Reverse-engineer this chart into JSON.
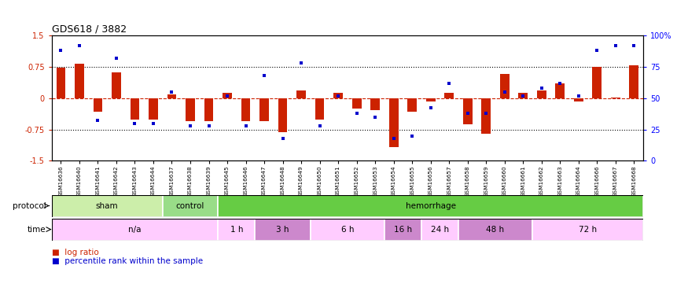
{
  "title": "GDS618 / 3882",
  "samples": [
    "GSM16636",
    "GSM16640",
    "GSM16641",
    "GSM16642",
    "GSM16643",
    "GSM16644",
    "GSM16637",
    "GSM16638",
    "GSM16639",
    "GSM16645",
    "GSM16646",
    "GSM16647",
    "GSM16648",
    "GSM16649",
    "GSM16650",
    "GSM16651",
    "GSM16652",
    "GSM16653",
    "GSM16654",
    "GSM16655",
    "GSM16656",
    "GSM16657",
    "GSM16658",
    "GSM16659",
    "GSM16660",
    "GSM16661",
    "GSM16662",
    "GSM16663",
    "GSM16664",
    "GSM16666",
    "GSM16667",
    "GSM16668"
  ],
  "log_ratio": [
    0.72,
    0.82,
    -0.32,
    0.62,
    -0.52,
    -0.52,
    0.08,
    -0.55,
    -0.55,
    0.12,
    -0.55,
    -0.55,
    -0.82,
    0.18,
    -0.52,
    0.12,
    -0.25,
    -0.28,
    -1.18,
    -0.32,
    -0.08,
    0.12,
    -0.62,
    -0.85,
    0.58,
    0.12,
    0.18,
    0.35,
    -0.08,
    0.75,
    0.02,
    0.78
  ],
  "percentile": [
    88,
    92,
    32,
    82,
    30,
    30,
    55,
    28,
    28,
    52,
    28,
    68,
    18,
    78,
    28,
    52,
    38,
    35,
    18,
    20,
    42,
    62,
    38,
    38,
    55,
    52,
    58,
    62,
    52,
    88,
    92,
    92
  ],
  "protocol_groups": [
    {
      "label": "sham",
      "start": 0,
      "end": 5,
      "color": "#cceeaa"
    },
    {
      "label": "control",
      "start": 6,
      "end": 8,
      "color": "#99dd88"
    },
    {
      "label": "hemorrhage",
      "start": 9,
      "end": 31,
      "color": "#66cc44"
    }
  ],
  "time_groups": [
    {
      "label": "n/a",
      "start": 0,
      "end": 8,
      "color": "#ffccff"
    },
    {
      "label": "1 h",
      "start": 9,
      "end": 10,
      "color": "#ffccff"
    },
    {
      "label": "3 h",
      "start": 11,
      "end": 13,
      "color": "#cc88cc"
    },
    {
      "label": "6 h",
      "start": 14,
      "end": 17,
      "color": "#ffccff"
    },
    {
      "label": "16 h",
      "start": 18,
      "end": 19,
      "color": "#cc88cc"
    },
    {
      "label": "24 h",
      "start": 20,
      "end": 21,
      "color": "#ffccff"
    },
    {
      "label": "48 h",
      "start": 22,
      "end": 25,
      "color": "#cc88cc"
    },
    {
      "label": "72 h",
      "start": 26,
      "end": 31,
      "color": "#ffccff"
    }
  ],
  "ylim_left": [
    -1.5,
    1.5
  ],
  "yticks_left": [
    -1.5,
    -0.75,
    0.0,
    0.75,
    1.5
  ],
  "ytick_labels_left": [
    "-1.5",
    "-0.75",
    "0",
    "0.75",
    "1.5"
  ],
  "yticks_right": [
    0,
    25,
    50,
    75,
    100
  ],
  "ytick_labels_right": [
    "0",
    "25",
    "50",
    "75",
    "100%"
  ],
  "bar_color": "#cc2200",
  "marker_color": "#0000cc",
  "bar_width": 0.5
}
